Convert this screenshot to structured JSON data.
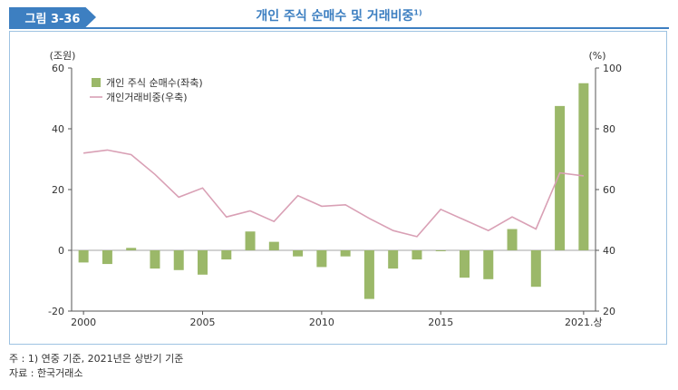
{
  "figure": {
    "label": "그림 3-36",
    "title": "개인 주식 순매수 및 거래비중",
    "title_sup": "1)"
  },
  "notes": {
    "note": "주 : 1) 연중 기준, 2021년은 상반기 기준",
    "source": "자료 : 한국거래소"
  },
  "colors": {
    "accent": "#3d7fc1",
    "bar": "#9bb869",
    "line": "#d9a0b5",
    "frame": "#9ec3e2"
  },
  "chart_data": {
    "type": "bar",
    "categories": [
      "2000",
      "2001",
      "2002",
      "2003",
      "2004",
      "2005",
      "2006",
      "2007",
      "2008",
      "2009",
      "2010",
      "2011",
      "2012",
      "2013",
      "2014",
      "2015",
      "2016",
      "2017",
      "2018",
      "2019",
      "2020",
      "2021.상"
    ],
    "series": [
      {
        "name": "개인 주식 순매수(좌축)",
        "type": "bar",
        "axis": "left",
        "values": [
          -4,
          -4.5,
          0.8,
          -6,
          -6.5,
          -8,
          -3,
          6.2,
          2.8,
          -2,
          -5.5,
          -2,
          -16,
          -6,
          -3,
          -0.3,
          -9,
          -9.5,
          7,
          -12,
          47.5,
          55
        ]
      },
      {
        "name": "개인거래비중(우축)",
        "type": "line",
        "axis": "right",
        "values": [
          72,
          73,
          71.5,
          65,
          57.5,
          60.5,
          51,
          53,
          49.5,
          58,
          54.5,
          55,
          50.5,
          46.5,
          44.5,
          53.5,
          50,
          46.5,
          51,
          47,
          65.5,
          64.5
        ]
      }
    ],
    "xticks": [
      "2000",
      "2005",
      "2010",
      "2015",
      "2021.상"
    ],
    "y_left": {
      "label": "(조원)",
      "ticks": [
        60,
        40,
        20,
        0,
        -20
      ],
      "ylim": [
        -20,
        60
      ]
    },
    "y_right": {
      "label": "(%)",
      "ticks": [
        100,
        80,
        60,
        40,
        20
      ],
      "ylim": [
        20,
        100
      ]
    },
    "legend_position": "top-left",
    "grid": false
  }
}
